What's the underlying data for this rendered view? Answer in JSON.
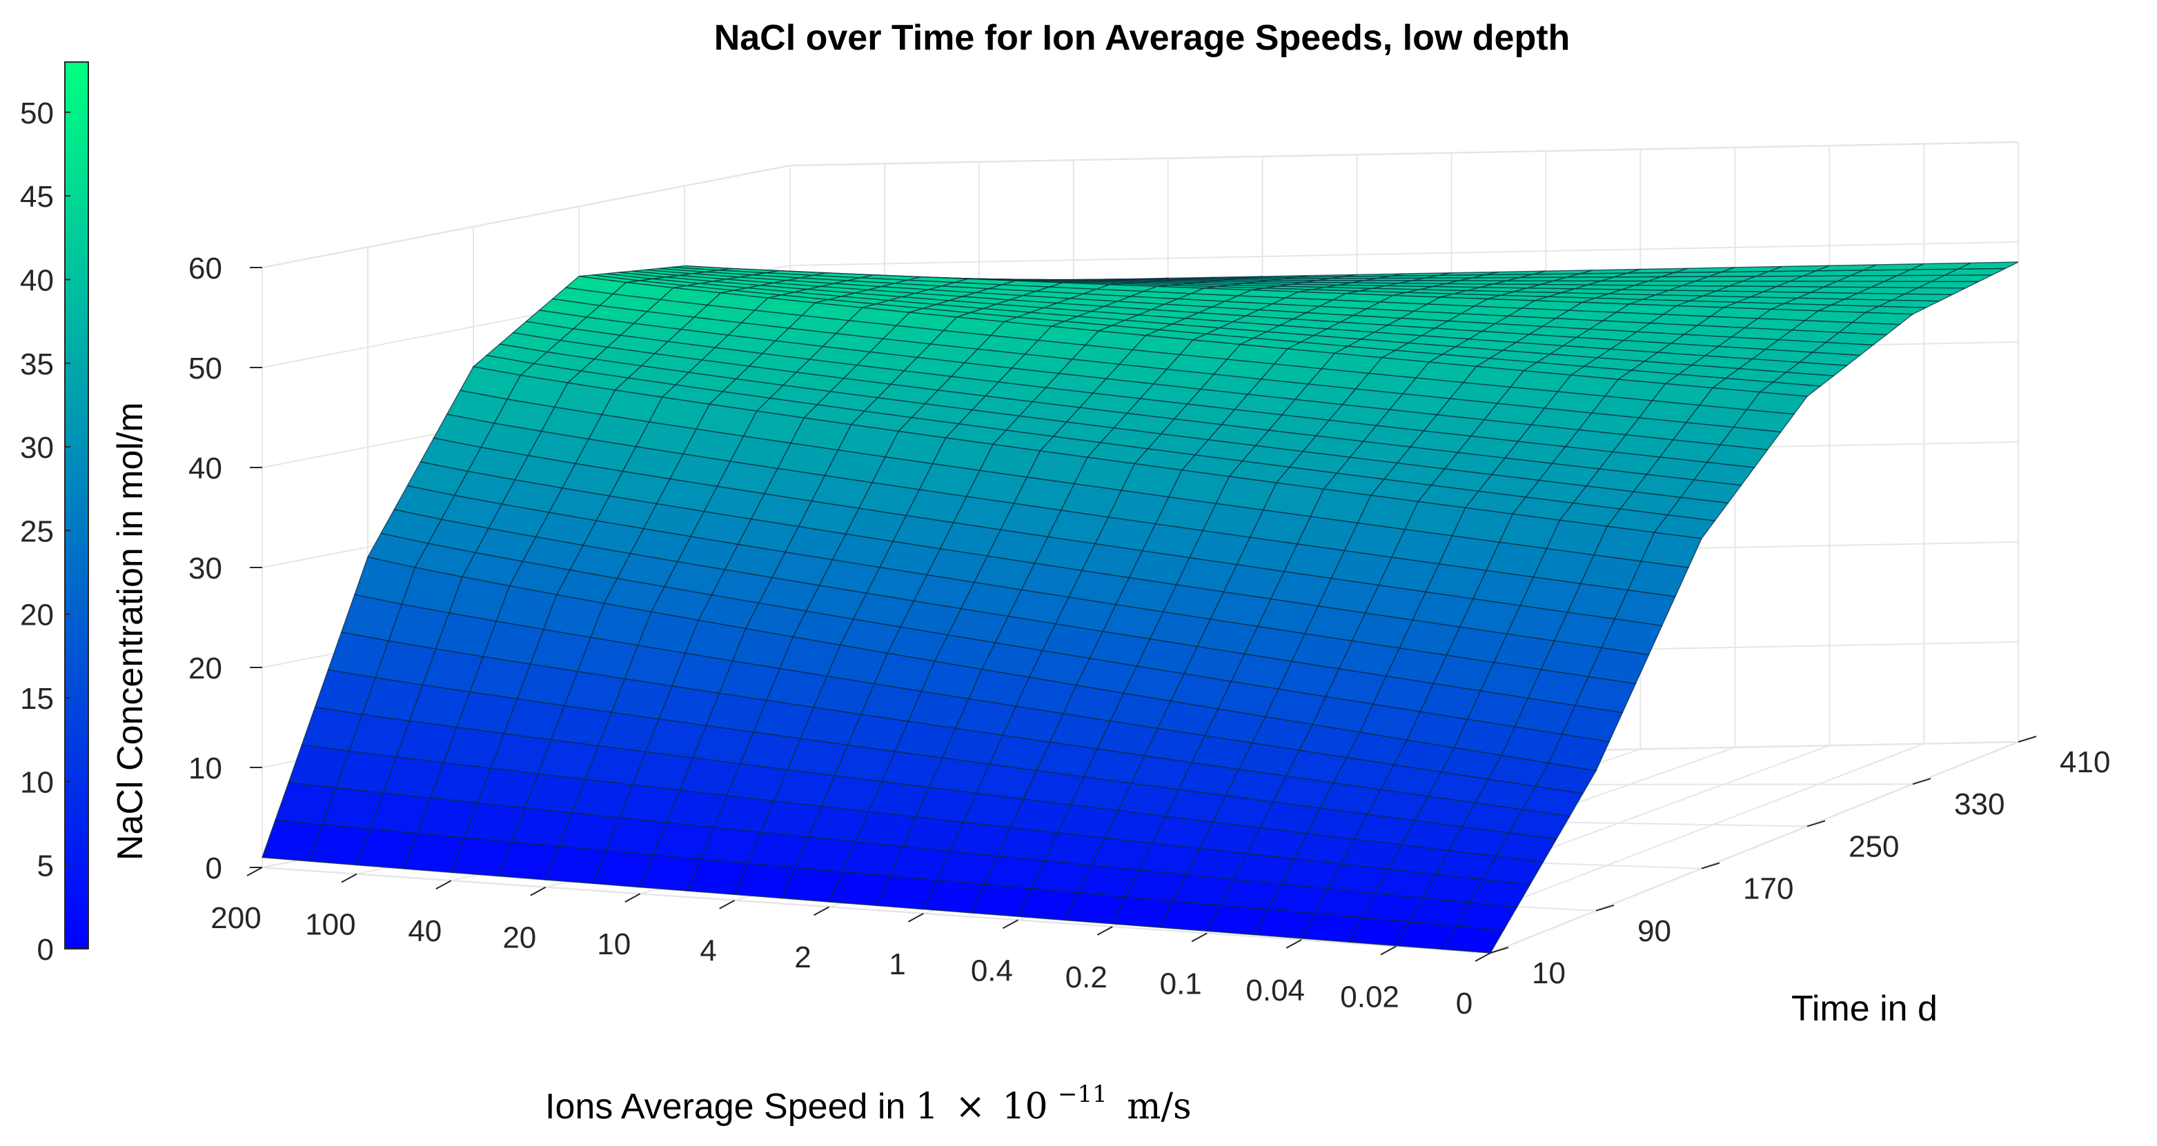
{
  "chart_data": {
    "type": "surface",
    "title": "NaCl over Time for Ion Average Speeds, low depth",
    "xlabel_prefix": "Ions Average Speed in ",
    "xlabel_math": {
      "coefficient": "1",
      "times": "×",
      "base": "10",
      "exponent": "−11",
      "unit": "m/s"
    },
    "ylabel": "Time in d",
    "zlabel": "NaCl Concentration in mol/m",
    "x_ticks": [
      "200",
      "100",
      "40",
      "20",
      "10",
      "4",
      "2",
      "1",
      "0.4",
      "0.2",
      "0.1",
      "0.04",
      "0.02",
      "0"
    ],
    "y_ticks": [
      10,
      90,
      170,
      250,
      330,
      410
    ],
    "z_ticks": [
      0,
      10,
      20,
      30,
      40,
      50,
      60
    ],
    "zlim": [
      0,
      60
    ],
    "ylim": [
      10,
      410
    ],
    "colorbar": {
      "ticks": [
        0,
        5,
        10,
        15,
        20,
        25,
        30,
        35,
        40,
        45,
        50
      ],
      "range": [
        0,
        53
      ],
      "colors": [
        "#0000ff",
        "#00ff80"
      ]
    },
    "surface": {
      "peak_speed": "200",
      "concentration_at_200_over_time": {
        "time": [
          10,
          90,
          170,
          250,
          330,
          410
        ],
        "value": [
          1,
          29,
          46,
          53,
          52,
          48
        ]
      },
      "concentration_at_0_over_time": {
        "time": [
          10,
          90,
          170,
          250,
          330,
          410
        ],
        "value": [
          0,
          14,
          33,
          43,
          47,
          48
        ]
      },
      "concentration_at_10d_over_speed": [
        1,
        0.6,
        0.4,
        0.3,
        0.2,
        0.1,
        0.1,
        0.05,
        0.02,
        0,
        0,
        0,
        0,
        0
      ]
    },
    "grid": true
  }
}
